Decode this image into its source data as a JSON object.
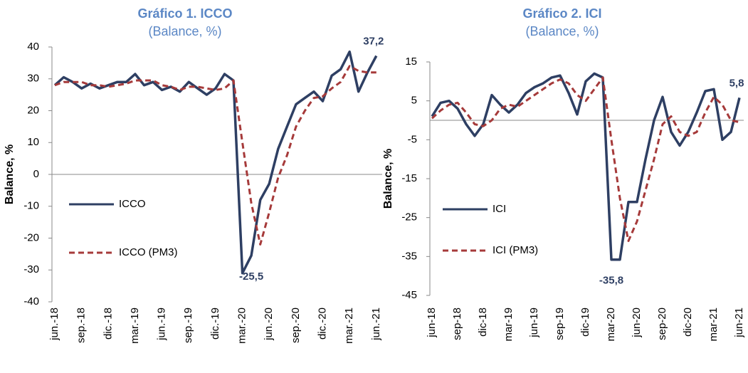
{
  "chart_data": [
    {
      "type": "line",
      "title": "Gráfico 1. ICCO",
      "subtitle": "(Balance, %)",
      "y_label": "Balance, %",
      "categories": [
        "jun.-18",
        null,
        null,
        "sep.-18",
        null,
        null,
        "dic.-18",
        null,
        null,
        "mar.-19",
        null,
        null,
        "jun.-19",
        null,
        null,
        "sep.-19",
        null,
        null,
        "dic.-19",
        null,
        null,
        "mar.-20",
        null,
        null,
        "jun.-20",
        null,
        null,
        "sep.-20",
        null,
        null,
        "dic.-20",
        null,
        null,
        "mar.-21",
        null,
        null,
        "jun.-21"
      ],
      "series": [
        {
          "name": "ICCO",
          "color": "#2e3f63",
          "dash": false,
          "values": [
            28,
            30.5,
            29,
            27,
            28.5,
            27,
            28,
            29,
            29,
            31.5,
            28,
            29,
            26.5,
            27.5,
            26,
            29,
            27,
            25,
            27,
            31.5,
            29.5,
            -31,
            -25.5,
            -8,
            -3,
            8,
            15,
            22,
            24,
            26,
            23,
            31,
            33,
            38.5,
            26,
            32,
            37.2
          ],
          "value_labels": [
            null,
            null,
            null,
            null,
            null,
            null,
            null,
            null,
            null,
            null,
            null,
            null,
            null,
            null,
            null,
            null,
            null,
            null,
            null,
            null,
            null,
            null,
            "-25,5",
            null,
            null,
            null,
            null,
            null,
            null,
            null,
            null,
            null,
            null,
            null,
            null,
            null,
            "37,2"
          ]
        },
        {
          "name": "ICCO (PM3)",
          "color": "#a63a3a",
          "dash": true,
          "values": [
            28,
            29,
            29,
            29,
            28,
            28,
            27.5,
            28,
            28.5,
            29.5,
            29.5,
            29.5,
            28,
            27.5,
            26.5,
            27.5,
            27.5,
            27,
            26.5,
            27,
            29.5,
            10,
            -9,
            -22,
            -12,
            -1,
            6,
            15,
            20,
            24,
            24.5,
            27,
            29,
            34,
            32.5,
            32,
            32
          ]
        }
      ],
      "ylim": [
        -40,
        40
      ],
      "yticks": [
        -40,
        -30,
        -20,
        -10,
        0,
        10,
        20,
        30,
        40
      ],
      "zero_line": true
    },
    {
      "type": "line",
      "title": "Gráfico 2. ICI",
      "subtitle": "(Balance, %)",
      "y_label": "Balance, %",
      "categories": [
        "jun-18",
        null,
        null,
        "sep-18",
        null,
        null,
        "dic-18",
        null,
        null,
        "mar-19",
        null,
        null,
        "jun-19",
        null,
        null,
        "sep-19",
        null,
        null,
        "dic-19",
        null,
        null,
        "mar-20",
        null,
        null,
        "jun-20",
        null,
        null,
        "sep-20",
        null,
        null,
        "dic-20",
        null,
        null,
        "mar-21",
        null,
        null,
        "jun-21"
      ],
      "series": [
        {
          "name": "ICI",
          "color": "#2e3f63",
          "dash": false,
          "values": [
            1,
            4.5,
            5,
            3,
            -1,
            -4,
            -1,
            6.5,
            4,
            2,
            4,
            7,
            8.5,
            9.5,
            11,
            11.5,
            7,
            1.5,
            10,
            12,
            11,
            -35.8,
            -35.8,
            -21,
            -21,
            -10,
            0,
            6,
            -3,
            -6.5,
            -3,
            2,
            7.5,
            8,
            -5,
            -3,
            5.8
          ],
          "value_labels": [
            null,
            null,
            null,
            null,
            null,
            null,
            null,
            null,
            null,
            null,
            null,
            null,
            null,
            null,
            null,
            null,
            null,
            null,
            null,
            null,
            null,
            "-35,8",
            null,
            null,
            null,
            null,
            null,
            null,
            null,
            null,
            null,
            null,
            null,
            null,
            null,
            null,
            "5,8"
          ]
        },
        {
          "name": "ICI (PM3)",
          "color": "#a63a3a",
          "dash": true,
          "values": [
            0.5,
            2.5,
            4,
            4.5,
            2,
            -1,
            -1.5,
            0,
            3,
            4,
            3.5,
            5,
            6.5,
            8,
            9.5,
            10.5,
            9.5,
            6.5,
            5,
            8,
            11,
            -5,
            -20,
            -31,
            -26,
            -18,
            -10,
            -1,
            1,
            -3,
            -4,
            -3,
            2,
            6,
            4,
            0,
            -0.5
          ]
        }
      ],
      "ylim": [
        -45,
        15
      ],
      "yticks": [
        -45,
        -35,
        -25,
        -15,
        -5,
        5,
        15
      ],
      "zero_line": true
    }
  ]
}
